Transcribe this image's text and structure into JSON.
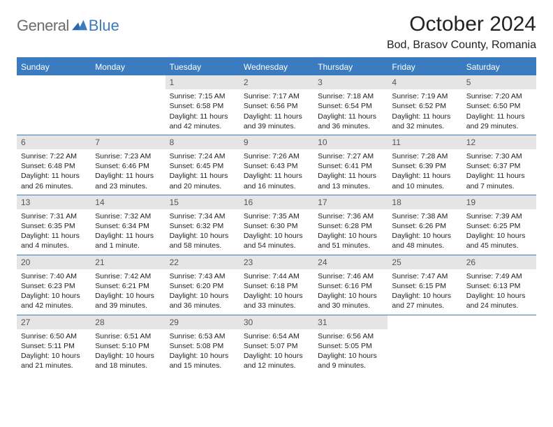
{
  "brand": {
    "part1": "General",
    "part2": "Blue"
  },
  "title": "October 2024",
  "location": "Bod, Brasov County, Romania",
  "colors": {
    "accent": "#3b7bbf",
    "daynum_bg": "#e5e5e5",
    "text": "#222222",
    "logo_gray": "#6c6c6c"
  },
  "dow": [
    "Sunday",
    "Monday",
    "Tuesday",
    "Wednesday",
    "Thursday",
    "Friday",
    "Saturday"
  ],
  "weeks": [
    [
      null,
      null,
      {
        "n": "1",
        "sr": "Sunrise: 7:15 AM",
        "ss": "Sunset: 6:58 PM",
        "dl": "Daylight: 11 hours and 42 minutes."
      },
      {
        "n": "2",
        "sr": "Sunrise: 7:17 AM",
        "ss": "Sunset: 6:56 PM",
        "dl": "Daylight: 11 hours and 39 minutes."
      },
      {
        "n": "3",
        "sr": "Sunrise: 7:18 AM",
        "ss": "Sunset: 6:54 PM",
        "dl": "Daylight: 11 hours and 36 minutes."
      },
      {
        "n": "4",
        "sr": "Sunrise: 7:19 AM",
        "ss": "Sunset: 6:52 PM",
        "dl": "Daylight: 11 hours and 32 minutes."
      },
      {
        "n": "5",
        "sr": "Sunrise: 7:20 AM",
        "ss": "Sunset: 6:50 PM",
        "dl": "Daylight: 11 hours and 29 minutes."
      }
    ],
    [
      {
        "n": "6",
        "sr": "Sunrise: 7:22 AM",
        "ss": "Sunset: 6:48 PM",
        "dl": "Daylight: 11 hours and 26 minutes."
      },
      {
        "n": "7",
        "sr": "Sunrise: 7:23 AM",
        "ss": "Sunset: 6:46 PM",
        "dl": "Daylight: 11 hours and 23 minutes."
      },
      {
        "n": "8",
        "sr": "Sunrise: 7:24 AM",
        "ss": "Sunset: 6:45 PM",
        "dl": "Daylight: 11 hours and 20 minutes."
      },
      {
        "n": "9",
        "sr": "Sunrise: 7:26 AM",
        "ss": "Sunset: 6:43 PM",
        "dl": "Daylight: 11 hours and 16 minutes."
      },
      {
        "n": "10",
        "sr": "Sunrise: 7:27 AM",
        "ss": "Sunset: 6:41 PM",
        "dl": "Daylight: 11 hours and 13 minutes."
      },
      {
        "n": "11",
        "sr": "Sunrise: 7:28 AM",
        "ss": "Sunset: 6:39 PM",
        "dl": "Daylight: 11 hours and 10 minutes."
      },
      {
        "n": "12",
        "sr": "Sunrise: 7:30 AM",
        "ss": "Sunset: 6:37 PM",
        "dl": "Daylight: 11 hours and 7 minutes."
      }
    ],
    [
      {
        "n": "13",
        "sr": "Sunrise: 7:31 AM",
        "ss": "Sunset: 6:35 PM",
        "dl": "Daylight: 11 hours and 4 minutes."
      },
      {
        "n": "14",
        "sr": "Sunrise: 7:32 AM",
        "ss": "Sunset: 6:34 PM",
        "dl": "Daylight: 11 hours and 1 minute."
      },
      {
        "n": "15",
        "sr": "Sunrise: 7:34 AM",
        "ss": "Sunset: 6:32 PM",
        "dl": "Daylight: 10 hours and 58 minutes."
      },
      {
        "n": "16",
        "sr": "Sunrise: 7:35 AM",
        "ss": "Sunset: 6:30 PM",
        "dl": "Daylight: 10 hours and 54 minutes."
      },
      {
        "n": "17",
        "sr": "Sunrise: 7:36 AM",
        "ss": "Sunset: 6:28 PM",
        "dl": "Daylight: 10 hours and 51 minutes."
      },
      {
        "n": "18",
        "sr": "Sunrise: 7:38 AM",
        "ss": "Sunset: 6:26 PM",
        "dl": "Daylight: 10 hours and 48 minutes."
      },
      {
        "n": "19",
        "sr": "Sunrise: 7:39 AM",
        "ss": "Sunset: 6:25 PM",
        "dl": "Daylight: 10 hours and 45 minutes."
      }
    ],
    [
      {
        "n": "20",
        "sr": "Sunrise: 7:40 AM",
        "ss": "Sunset: 6:23 PM",
        "dl": "Daylight: 10 hours and 42 minutes."
      },
      {
        "n": "21",
        "sr": "Sunrise: 7:42 AM",
        "ss": "Sunset: 6:21 PM",
        "dl": "Daylight: 10 hours and 39 minutes."
      },
      {
        "n": "22",
        "sr": "Sunrise: 7:43 AM",
        "ss": "Sunset: 6:20 PM",
        "dl": "Daylight: 10 hours and 36 minutes."
      },
      {
        "n": "23",
        "sr": "Sunrise: 7:44 AM",
        "ss": "Sunset: 6:18 PM",
        "dl": "Daylight: 10 hours and 33 minutes."
      },
      {
        "n": "24",
        "sr": "Sunrise: 7:46 AM",
        "ss": "Sunset: 6:16 PM",
        "dl": "Daylight: 10 hours and 30 minutes."
      },
      {
        "n": "25",
        "sr": "Sunrise: 7:47 AM",
        "ss": "Sunset: 6:15 PM",
        "dl": "Daylight: 10 hours and 27 minutes."
      },
      {
        "n": "26",
        "sr": "Sunrise: 7:49 AM",
        "ss": "Sunset: 6:13 PM",
        "dl": "Daylight: 10 hours and 24 minutes."
      }
    ],
    [
      {
        "n": "27",
        "sr": "Sunrise: 6:50 AM",
        "ss": "Sunset: 5:11 PM",
        "dl": "Daylight: 10 hours and 21 minutes."
      },
      {
        "n": "28",
        "sr": "Sunrise: 6:51 AM",
        "ss": "Sunset: 5:10 PM",
        "dl": "Daylight: 10 hours and 18 minutes."
      },
      {
        "n": "29",
        "sr": "Sunrise: 6:53 AM",
        "ss": "Sunset: 5:08 PM",
        "dl": "Daylight: 10 hours and 15 minutes."
      },
      {
        "n": "30",
        "sr": "Sunrise: 6:54 AM",
        "ss": "Sunset: 5:07 PM",
        "dl": "Daylight: 10 hours and 12 minutes."
      },
      {
        "n": "31",
        "sr": "Sunrise: 6:56 AM",
        "ss": "Sunset: 5:05 PM",
        "dl": "Daylight: 10 hours and 9 minutes."
      },
      null,
      null
    ]
  ]
}
